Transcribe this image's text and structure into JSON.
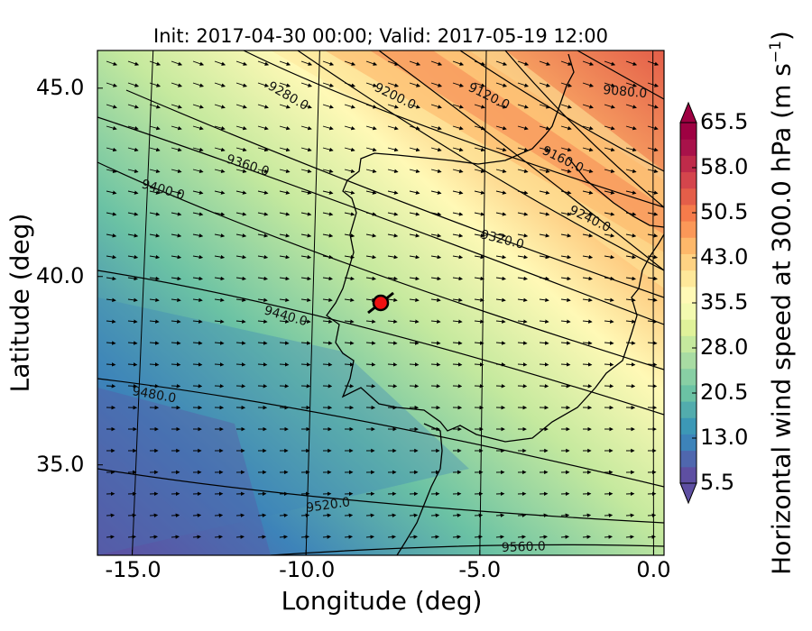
{
  "map": {
    "title": "Init: 2017-04-30 00:00; Valid: 2017-05-19 12:00",
    "xlabel": "Longitude (deg)",
    "ylabel": "Latitude (deg)",
    "x_ticks": [
      "-15.0",
      "-10.0",
      "-5.0",
      "0.0"
    ],
    "y_ticks": [
      "45.0",
      "40.0",
      "35.0"
    ],
    "x_range": [
      -16.0,
      0.3
    ],
    "y_range": [
      32.6,
      46.0
    ],
    "field": "horizontal wind speed at 300 hPa (filled), geopotential height contours, wind vectors",
    "marker": {
      "lon": -7.6,
      "lat": 39.3,
      "color": "#ee1111"
    }
  },
  "contours": {
    "labels": [
      "9080.0",
      "9120.0",
      "9160.0",
      "9200.0",
      "9240.0",
      "9280.0",
      "9320.0",
      "9360.0",
      "9400.0",
      "9440.0",
      "9480.0",
      "9520.0",
      "9560.0"
    ]
  },
  "colorbar": {
    "label": "Horizontal wind speed at 300.0 hPa (m s$^{-1}$)",
    "label_main": "Horizontal wind speed at 300.0 hPa (m s",
    "label_sup": "−1",
    "label_close": ")",
    "ticks": [
      "65.5",
      "58.0",
      "50.5",
      "43.0",
      "35.5",
      "28.0",
      "20.5",
      "13.0",
      "5.5"
    ],
    "range": [
      5.5,
      65.5
    ],
    "extend": "both",
    "colors": [
      "#5e4fa2",
      "#4f67ae",
      "#3d83b9",
      "#3c98b6",
      "#52acad",
      "#6bc2a4",
      "#88cfa4",
      "#a8dca3",
      "#c5e99e",
      "#e0f29a",
      "#f3fab0",
      "#fff9b6",
      "#fee89a",
      "#fed283",
      "#fdb86a",
      "#fb9858",
      "#f57b4b",
      "#e45e49",
      "#d4454c",
      "#bf2b4a",
      "#a8124a",
      "#9e0142"
    ]
  },
  "chart_data": {
    "type": "heatmap",
    "title": "Init: 2017-04-30 00:00; Valid: 2017-05-19 12:00",
    "xlabel": "Longitude (deg)",
    "ylabel": "Latitude (deg)",
    "xlim": [
      -16.0,
      0.3
    ],
    "ylim": [
      32.6,
      46.0
    ],
    "colorbar_range": [
      5.5,
      65.5
    ],
    "contour_levels": [
      9080,
      9120,
      9160,
      9200,
      9240,
      9280,
      9320,
      9360,
      9400,
      9440,
      9480,
      9520,
      9560
    ],
    "marker": {
      "lon": -7.6,
      "lat": 39.3
    }
  }
}
